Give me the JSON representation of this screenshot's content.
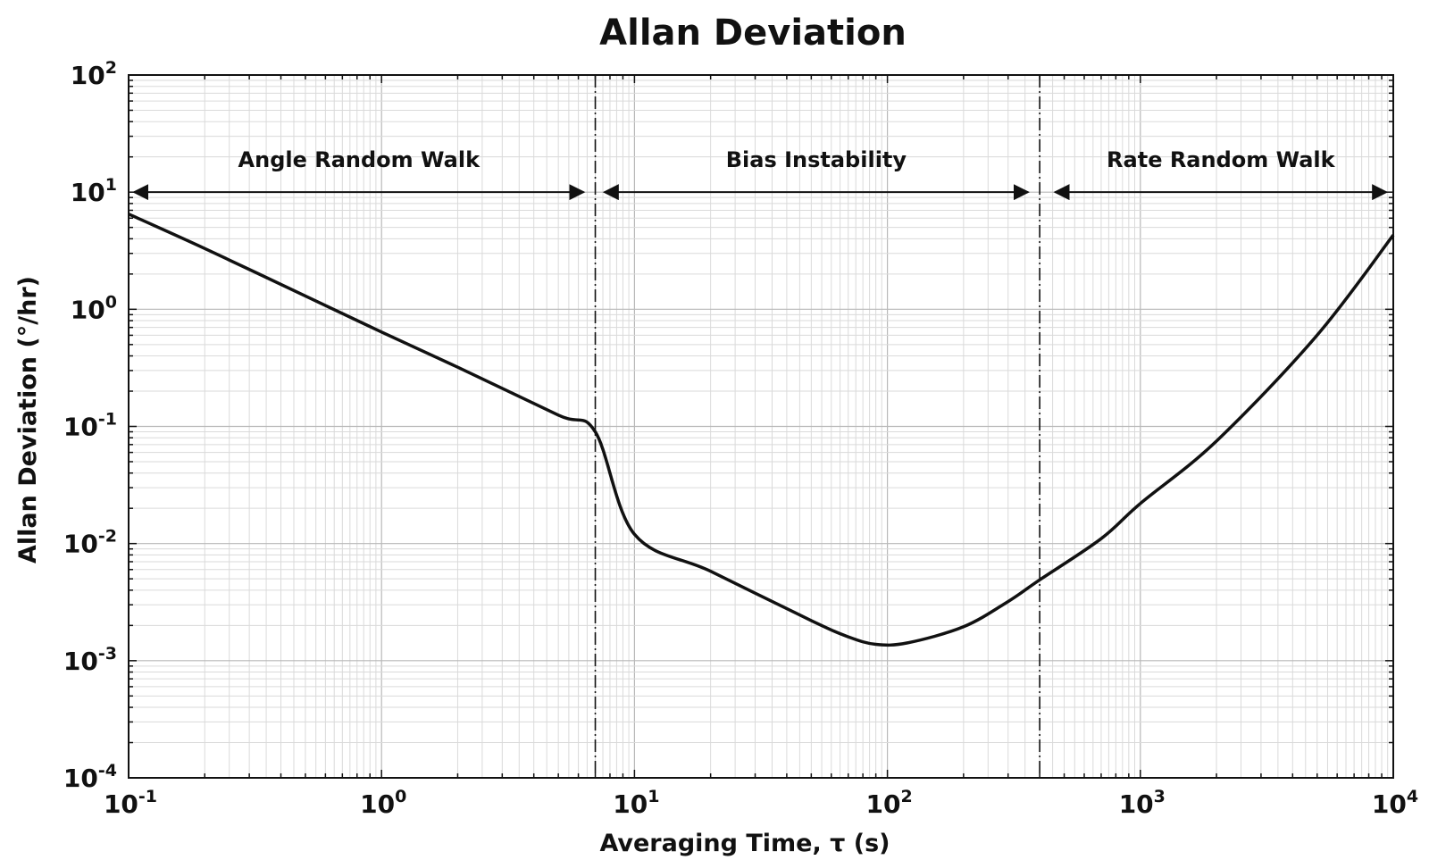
{
  "chart_data": {
    "type": "line",
    "title": "Allan Deviation",
    "xlabel": "Averaging Time, τ (s)",
    "ylabel": "Allan Deviation (°/hr)",
    "xscale": "log",
    "yscale": "log",
    "xlim": [
      0.1,
      10000
    ],
    "ylim": [
      0.0001,
      100
    ],
    "grid": true,
    "x_ticks": [
      {
        "base": "10",
        "exp": "-1",
        "value": 0.1
      },
      {
        "base": "10",
        "exp": "0",
        "value": 1
      },
      {
        "base": "10",
        "exp": "1",
        "value": 10
      },
      {
        "base": "10",
        "exp": "2",
        "value": 100
      },
      {
        "base": "10",
        "exp": "3",
        "value": 1000
      },
      {
        "base": "10",
        "exp": "4",
        "value": 10000
      }
    ],
    "y_ticks": [
      {
        "base": "10",
        "exp": "-4",
        "value": 0.0001
      },
      {
        "base": "10",
        "exp": "-3",
        "value": 0.001
      },
      {
        "base": "10",
        "exp": "-2",
        "value": 0.01
      },
      {
        "base": "10",
        "exp": "-1",
        "value": 0.1
      },
      {
        "base": "10",
        "exp": "0",
        "value": 1
      },
      {
        "base": "10",
        "exp": "1",
        "value": 10
      },
      {
        "base": "10",
        "exp": "2",
        "value": 100
      }
    ],
    "series": [
      {
        "x": [
          0.1,
          0.2,
          0.5,
          1,
          2,
          5,
          7,
          10,
          20,
          50,
          70,
          90,
          120,
          200,
          300,
          400,
          700,
          1000,
          2000,
          5000,
          10000
        ],
        "y": [
          6.5,
          3.3,
          1.3,
          0.64,
          0.32,
          0.125,
          0.09,
          0.012,
          0.0058,
          0.0022,
          0.0016,
          0.00138,
          0.00142,
          0.00195,
          0.0032,
          0.0049,
          0.011,
          0.022,
          0.075,
          0.6,
          4.3
        ],
        "color": "#111111"
      }
    ],
    "region_boundaries": [
      7,
      400
    ],
    "regions": [
      {
        "label": "Angle Random Walk",
        "from": 0.105,
        "to": 6.3
      },
      {
        "label": "Bias Instability",
        "from": 7.6,
        "to": 360
      },
      {
        "label": "Rate Random Walk",
        "from": 460,
        "to": 9400
      }
    ],
    "region_arrow_y": 10
  }
}
